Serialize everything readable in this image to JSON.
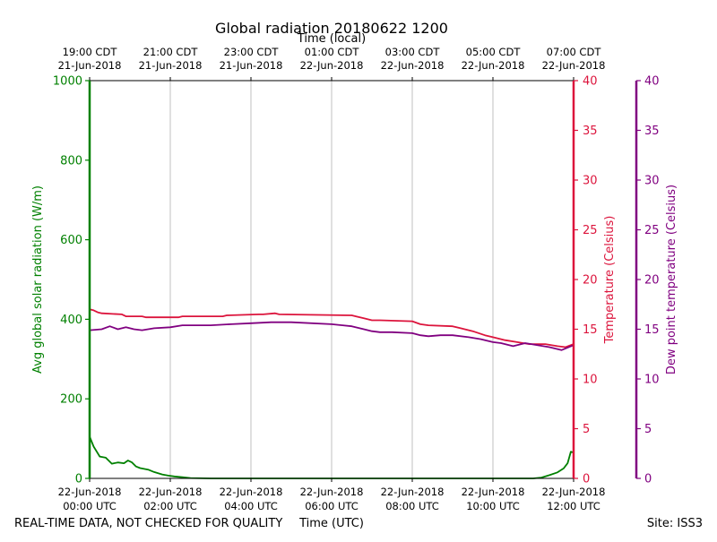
{
  "chart_data": {
    "type": "line",
    "title": "Global radiation 20180622 1200",
    "top_axis_title": "Time (local)",
    "xlabel": "Time (UTC)",
    "footer_left": "REAL-TIME DATA, NOT CHECKED FOR QUALITY",
    "footer_right": "Site: ISS3",
    "x_range_hours": [
      0,
      12
    ],
    "bottom_ticks": [
      {
        "hour": 0,
        "date": "22-Jun-2018",
        "time": "00:00 UTC"
      },
      {
        "hour": 2,
        "date": "22-Jun-2018",
        "time": "02:00 UTC"
      },
      {
        "hour": 4,
        "date": "22-Jun-2018",
        "time": "04:00 UTC"
      },
      {
        "hour": 6,
        "date": "22-Jun-2018",
        "time": "06:00 UTC"
      },
      {
        "hour": 8,
        "date": "22-Jun-2018",
        "time": "08:00 UTC"
      },
      {
        "hour": 10,
        "date": "22-Jun-2018",
        "time": "10:00 UTC"
      },
      {
        "hour": 12,
        "date": "22-Jun-2018",
        "time": "12:00 UTC"
      }
    ],
    "top_ticks": [
      {
        "hour": 0,
        "time": "19:00 CDT",
        "date": "21-Jun-2018"
      },
      {
        "hour": 2,
        "time": "21:00 CDT",
        "date": "21-Jun-2018"
      },
      {
        "hour": 4,
        "time": "23:00 CDT",
        "date": "21-Jun-2018"
      },
      {
        "hour": 6,
        "time": "01:00 CDT",
        "date": "22-Jun-2018"
      },
      {
        "hour": 8,
        "time": "03:00 CDT",
        "date": "22-Jun-2018"
      },
      {
        "hour": 10,
        "time": "05:00 CDT",
        "date": "22-Jun-2018"
      },
      {
        "hour": 12,
        "time": "07:00 CDT",
        "date": "22-Jun-2018"
      }
    ],
    "axes": {
      "radiation": {
        "label": "Avg global solar radiation (W/m)",
        "ylim": [
          0,
          1000
        ],
        "ticks": [
          0,
          200,
          400,
          600,
          800,
          1000
        ],
        "color": "#008000"
      },
      "temperature": {
        "label": "Temperature (Celsius)",
        "ylim": [
          0,
          40
        ],
        "ticks": [
          0,
          5,
          10,
          15,
          20,
          25,
          30,
          35,
          40
        ],
        "color": "#dc143c"
      },
      "dewpoint": {
        "label": "Dew point temperature (Celsius)",
        "ylim": [
          0,
          40
        ],
        "ticks": [
          0,
          5,
          10,
          15,
          20,
          25,
          30,
          35,
          40
        ],
        "color": "#800080"
      }
    },
    "series": [
      {
        "name": "Avg global solar radiation",
        "axis": "radiation",
        "color": "#008000",
        "x": [
          0,
          0.1,
          0.25,
          0.4,
          0.55,
          0.7,
          0.85,
          0.95,
          1.05,
          1.15,
          1.25,
          1.45,
          1.6,
          1.8,
          1.95,
          2.1,
          2.3,
          2.5,
          3,
          4,
          6,
          8,
          10,
          11,
          11.2,
          11.4,
          11.6,
          11.75,
          11.85,
          11.93,
          12
        ],
        "values": [
          105,
          80,
          55,
          52,
          37,
          40,
          38,
          45,
          40,
          30,
          26,
          22,
          16,
          10,
          7,
          5,
          3,
          1,
          0,
          0,
          0,
          0,
          0,
          0,
          2,
          8,
          15,
          25,
          38,
          67,
          65
        ]
      },
      {
        "name": "Temperature",
        "axis": "temperature",
        "color": "#dc143c",
        "x": [
          0,
          0.1,
          0.2,
          0.3,
          0.8,
          0.9,
          1.3,
          1.4,
          2.2,
          2.3,
          3.3,
          3.4,
          4.2,
          4.3,
          4.6,
          4.7,
          6.5,
          6.6,
          6.8,
          7.0,
          7.2,
          8.0,
          8.2,
          8.4,
          9.0,
          9.2,
          9.5,
          9.8,
          10.0,
          10.3,
          10.6,
          10.9,
          11.3,
          11.6,
          11.8,
          12
        ],
        "values": [
          17.0,
          16.9,
          16.7,
          16.6,
          16.5,
          16.3,
          16.3,
          16.2,
          16.2,
          16.3,
          16.3,
          16.4,
          16.5,
          16.5,
          16.6,
          16.5,
          16.4,
          16.3,
          16.1,
          15.9,
          15.9,
          15.8,
          15.5,
          15.4,
          15.3,
          15.1,
          14.8,
          14.4,
          14.2,
          13.9,
          13.7,
          13.5,
          13.5,
          13.3,
          13.2,
          13.5
        ]
      },
      {
        "name": "Dew point temperature",
        "axis": "dewpoint",
        "color": "#800080",
        "x": [
          0,
          0.3,
          0.5,
          0.7,
          0.9,
          1.1,
          1.3,
          1.6,
          2.0,
          2.3,
          3.0,
          3.5,
          4.0,
          4.5,
          5.0,
          6.0,
          6.5,
          6.8,
          7.0,
          7.2,
          7.5,
          8.0,
          8.2,
          8.4,
          8.7,
          9.0,
          9.4,
          9.7,
          10.0,
          10.2,
          10.5,
          10.8,
          11.1,
          11.4,
          11.7,
          12
        ],
        "values": [
          14.9,
          15.0,
          15.3,
          15.0,
          15.2,
          15.0,
          14.9,
          15.1,
          15.2,
          15.4,
          15.4,
          15.5,
          15.6,
          15.7,
          15.7,
          15.5,
          15.3,
          15.0,
          14.8,
          14.7,
          14.7,
          14.6,
          14.4,
          14.3,
          14.4,
          14.4,
          14.2,
          14.0,
          13.7,
          13.6,
          13.3,
          13.6,
          13.4,
          13.2,
          12.9,
          13.4
        ]
      }
    ]
  }
}
